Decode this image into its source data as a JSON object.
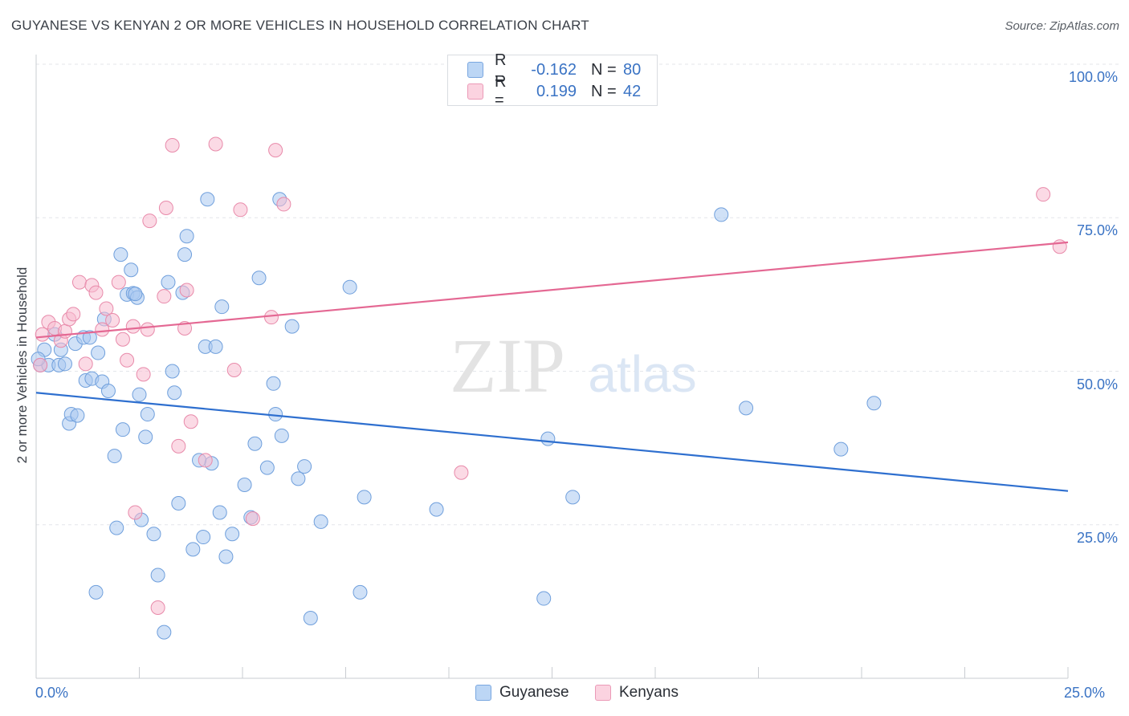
{
  "title": "GUYANESE VS KENYAN 2 OR MORE VEHICLES IN HOUSEHOLD CORRELATION CHART",
  "source": "Source: ZipAtlas.com",
  "watermark": {
    "zip": "ZIP",
    "atlas": "atlas"
  },
  "legend": {
    "series1": {
      "r_label": "R =",
      "r_value": "-0.162",
      "n_label": "N =",
      "n_value": "80",
      "color": "#a9c8f0"
    },
    "series2": {
      "r_label": "R =",
      "r_value": "0.199",
      "n_label": "N =",
      "n_value": "42",
      "color": "#f7bcd0"
    }
  },
  "bottom_legend": {
    "series1": "Guyanese",
    "series2": "Kenyans"
  },
  "chart_data": {
    "type": "scatter",
    "title": "GUYANESE VS KENYAN 2 OR MORE VEHICLES IN HOUSEHOLD CORRELATION CHART",
    "xlabel": "",
    "ylabel": "2 or more Vehicles in Household",
    "xlim": [
      0,
      25
    ],
    "ylim": [
      0,
      100
    ],
    "x_tick_labels": [
      "0.0%",
      "25.0%"
    ],
    "y_ticks": [
      25,
      50,
      75,
      100
    ],
    "y_tick_labels": [
      "25.0%",
      "50.0%",
      "75.0%",
      "100.0%"
    ],
    "grid": true,
    "series": [
      {
        "name": "Guyanese",
        "color": "#a9c8f0",
        "stroke": "#6f9fdc",
        "trend_color": "#2e6fcf",
        "trend": {
          "x": [
            0,
            25
          ],
          "y": [
            46.5,
            30.5
          ]
        },
        "points": [
          [
            0.1,
            51
          ],
          [
            0.2,
            53.5
          ],
          [
            0.3,
            51
          ],
          [
            0.45,
            56
          ],
          [
            0.55,
            51
          ],
          [
            0.6,
            53.5
          ],
          [
            0.7,
            51.2
          ],
          [
            0.8,
            41.5
          ],
          [
            0.85,
            43
          ],
          [
            0.95,
            54.5
          ],
          [
            1.0,
            42.8
          ],
          [
            1.15,
            55.5
          ],
          [
            1.2,
            48.5
          ],
          [
            1.3,
            55.5
          ],
          [
            1.35,
            48.8
          ],
          [
            1.5,
            53
          ],
          [
            1.6,
            48.3
          ],
          [
            1.65,
            58.5
          ],
          [
            1.75,
            46.8
          ],
          [
            1.9,
            36.2
          ],
          [
            1.95,
            24.5
          ],
          [
            2.05,
            69
          ],
          [
            2.1,
            40.5
          ],
          [
            2.2,
            62.5
          ],
          [
            2.3,
            66.5
          ],
          [
            2.35,
            62.7
          ],
          [
            2.45,
            62
          ],
          [
            2.5,
            46.2
          ],
          [
            2.55,
            25.8
          ],
          [
            2.65,
            39.3
          ],
          [
            2.7,
            43
          ],
          [
            2.85,
            23.5
          ],
          [
            2.95,
            16.8
          ],
          [
            3.1,
            7.5
          ],
          [
            3.2,
            64.5
          ],
          [
            3.3,
            50
          ],
          [
            3.35,
            46.5
          ],
          [
            3.45,
            28.5
          ],
          [
            3.55,
            62.8
          ],
          [
            3.6,
            69
          ],
          [
            3.65,
            72
          ],
          [
            3.8,
            21
          ],
          [
            4.05,
            23
          ],
          [
            4.1,
            54
          ],
          [
            4.15,
            78
          ],
          [
            4.25,
            35
          ],
          [
            4.35,
            54
          ],
          [
            4.45,
            27
          ],
          [
            4.5,
            60.5
          ],
          [
            4.6,
            19.8
          ],
          [
            4.75,
            23.5
          ],
          [
            5.05,
            31.5
          ],
          [
            5.2,
            26.2
          ],
          [
            5.3,
            38.2
          ],
          [
            5.4,
            65.2
          ],
          [
            5.6,
            34.3
          ],
          [
            5.75,
            48
          ],
          [
            5.8,
            43
          ],
          [
            5.9,
            78
          ],
          [
            5.95,
            39.5
          ],
          [
            6.2,
            57.3
          ],
          [
            6.35,
            32.5
          ],
          [
            6.5,
            34.5
          ],
          [
            6.65,
            9.8
          ],
          [
            6.9,
            25.5
          ],
          [
            7.6,
            63.7
          ],
          [
            7.85,
            14
          ],
          [
            7.95,
            29.5
          ],
          [
            9.7,
            27.5
          ],
          [
            12.3,
            13
          ],
          [
            12.4,
            39
          ],
          [
            13.0,
            29.5
          ],
          [
            16.6,
            75.5
          ],
          [
            17.2,
            44
          ],
          [
            19.5,
            37.3
          ],
          [
            20.3,
            44.8
          ],
          [
            1.45,
            14
          ],
          [
            3.95,
            35.5
          ],
          [
            2.4,
            62.6
          ],
          [
            0.05,
            52
          ]
        ]
      },
      {
        "name": "Kenyans",
        "color": "#f7bcd0",
        "stroke": "#e88aaa",
        "trend_color": "#e46893",
        "trend": {
          "x": [
            0,
            25
          ],
          "y": [
            55.5,
            71
          ]
        },
        "points": [
          [
            0.1,
            51
          ],
          [
            0.15,
            56
          ],
          [
            0.3,
            58
          ],
          [
            0.45,
            57
          ],
          [
            0.6,
            55
          ],
          [
            0.7,
            56.5
          ],
          [
            0.8,
            58.5
          ],
          [
            0.9,
            59.3
          ],
          [
            1.05,
            64.5
          ],
          [
            1.2,
            51.2
          ],
          [
            1.35,
            64
          ],
          [
            1.45,
            62.8
          ],
          [
            1.6,
            56.8
          ],
          [
            1.7,
            60.2
          ],
          [
            1.85,
            58.3
          ],
          [
            2.0,
            64.5
          ],
          [
            2.1,
            55.2
          ],
          [
            2.2,
            51.8
          ],
          [
            2.35,
            57.3
          ],
          [
            2.4,
            27
          ],
          [
            2.6,
            49.5
          ],
          [
            2.7,
            56.8
          ],
          [
            2.75,
            74.5
          ],
          [
            2.95,
            11.5
          ],
          [
            3.1,
            62.2
          ],
          [
            3.15,
            76.6
          ],
          [
            3.3,
            86.8
          ],
          [
            3.45,
            37.8
          ],
          [
            3.6,
            57
          ],
          [
            3.65,
            63.2
          ],
          [
            3.75,
            41.8
          ],
          [
            4.1,
            35.5
          ],
          [
            4.35,
            87
          ],
          [
            4.8,
            50.2
          ],
          [
            4.95,
            76.3
          ],
          [
            5.25,
            26
          ],
          [
            5.7,
            58.8
          ],
          [
            5.8,
            86
          ],
          [
            6.0,
            77.2
          ],
          [
            10.3,
            33.5
          ],
          [
            24.4,
            78.8
          ],
          [
            24.8,
            70.3
          ]
        ]
      }
    ]
  }
}
